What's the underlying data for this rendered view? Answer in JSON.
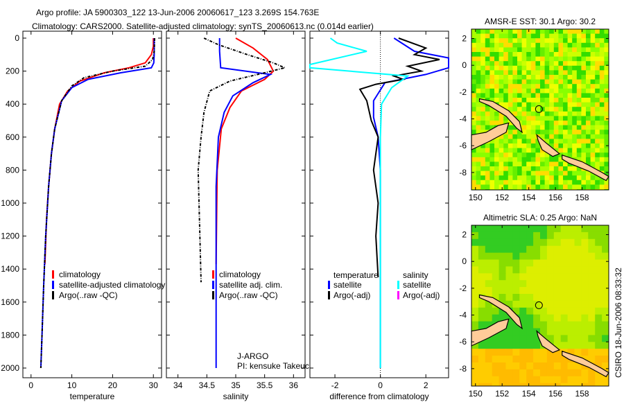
{
  "title_line1": "Argo profile: JA 5900303_122 13-Jun-2006 20060617_123 3.269S 154.763E",
  "title_line2": "Climatology: CARS2000. Satellite-adjusted climatology: synTS_20060613.nc (0.014d earlier)",
  "colors": {
    "climatology": "#ff0000",
    "satellite": "#0000ff",
    "argo": "#000000",
    "sal_satellite": "#00ffff",
    "sal_argo": "#ff00ff"
  },
  "chart_data": [
    {
      "type": "line",
      "name": "temperature",
      "xlabel": "temperature",
      "ylabel": "",
      "xlim": [
        -2,
        32
      ],
      "ylim": [
        2050,
        0
      ],
      "xticks": [
        "0",
        "10",
        "20",
        "30"
      ],
      "xtickvals": [
        0,
        10,
        20,
        30
      ],
      "yticks": [
        "0",
        "200",
        "400",
        "600",
        "800",
        "1000",
        "1200",
        "1400",
        "1600",
        "1800",
        "2000"
      ],
      "legend": [
        "climatology",
        "satellite-adjusted climatology",
        "Argo(..raw -QC)"
      ],
      "series": [
        {
          "name": "climatology",
          "color": "#ff0000",
          "x": [
            30,
            30,
            29.5,
            28,
            24,
            18,
            12,
            9,
            7,
            5.8,
            5,
            4.3,
            3.8,
            3.4
          ],
          "depth": [
            0,
            50,
            100,
            150,
            180,
            210,
            260,
            320,
            400,
            550,
            700,
            900,
            1100,
            1370
          ]
        },
        {
          "name": "satellite",
          "color": "#0000ff",
          "x": [
            30.2,
            30.2,
            30.1,
            29.5,
            22,
            14,
            10,
            7.5,
            5.8,
            5,
            4.3,
            3.6,
            3.1,
            2.7,
            2.4
          ],
          "depth": [
            0,
            100,
            150,
            180,
            210,
            250,
            300,
            380,
            550,
            700,
            900,
            1200,
            1500,
            1800,
            2000
          ]
        },
        {
          "name": "argo",
          "color": "#000000",
          "x": [
            30.3,
            30.2,
            29.8,
            28,
            20,
            13,
            10,
            7.5,
            5.8,
            5,
            4.3,
            3.6,
            3.1,
            2.7,
            2.4
          ],
          "depth": [
            0,
            80,
            130,
            170,
            200,
            240,
            290,
            380,
            550,
            700,
            900,
            1200,
            1500,
            1800,
            2000
          ]
        }
      ]
    },
    {
      "type": "line",
      "name": "salinity",
      "xlabel": "salinity",
      "xlim": [
        33.8,
        36.2
      ],
      "ylim": [
        2050,
        0
      ],
      "xticks": [
        "34",
        "34.5",
        "35",
        "35.5",
        "36"
      ],
      "xtickvals": [
        34,
        34.5,
        35,
        35.5,
        36
      ],
      "legend": [
        "climatology",
        "satellite adj. clim.",
        "Argo(..raw -QC)"
      ],
      "annotation": [
        "J-ARGO",
        "PI: kensuke Takeuchi"
      ],
      "series": [
        {
          "name": "climatology",
          "color": "#ff0000",
          "x": [
            35,
            35.3,
            35.55,
            35.65,
            35.5,
            35.1,
            34.9,
            34.75,
            34.68,
            34.66
          ],
          "depth": [
            0,
            60,
            130,
            200,
            250,
            320,
            420,
            550,
            800,
            1370
          ]
        },
        {
          "name": "satellite",
          "color": "#0000ff",
          "x": [
            34.72,
            34.72,
            34.74,
            35.6,
            35.3,
            34.95,
            34.8,
            34.7,
            34.66,
            34.66
          ],
          "depth": [
            0,
            80,
            180,
            220,
            270,
            350,
            450,
            600,
            900,
            2000
          ]
        },
        {
          "name": "argo",
          "color": "#000000",
          "x": [
            34.45,
            34.7,
            35.2,
            35.65,
            35.85,
            35.5,
            34.9,
            34.55,
            34.45,
            34.4,
            34.35,
            34.38,
            34.4
          ],
          "depth": [
            0,
            40,
            100,
            150,
            180,
            210,
            260,
            320,
            450,
            600,
            800,
            1200,
            1480
          ]
        }
      ]
    },
    {
      "type": "line",
      "name": "difference",
      "xlabel": "difference from climatology",
      "xlim": [
        -3.1,
        3
      ],
      "ylim": [
        2050,
        0
      ],
      "xticks": [
        "-2",
        "0",
        "2"
      ],
      "xtickvals": [
        -2,
        0,
        2
      ],
      "legend_titles": [
        "temperature",
        "salinity"
      ],
      "legend": [
        "satellite",
        "Argo(-adj)",
        "satellite",
        "Argo(-adj)"
      ],
      "series": [
        {
          "name": "temperature satellite",
          "color": "#0000ff",
          "x": [
            0.6,
            1.5,
            3,
            3,
            2,
            0.2,
            -0.3,
            -0.3,
            -0.1,
            0,
            0,
            0
          ],
          "depth": [
            0,
            80,
            120,
            180,
            220,
            270,
            380,
            480,
            600,
            800,
            1200,
            2000
          ]
        },
        {
          "name": "temperature argo",
          "color": "#000000",
          "x": [
            0.8,
            2,
            1.5,
            2.6,
            1.2,
            1.8,
            0.6,
            1,
            -0.2,
            -0.9,
            -0.6,
            -0.4,
            -0.1,
            -0.3,
            -0.1,
            -0.2,
            -0.1
          ],
          "depth": [
            0,
            60,
            100,
            130,
            170,
            200,
            230,
            250,
            280,
            310,
            380,
            500,
            600,
            800,
            1000,
            1200,
            1450
          ]
        },
        {
          "name": "salinity satellite",
          "color": "#00ffff",
          "x": [
            -2.2,
            -1.9,
            -0.6,
            -3.2,
            -3.2,
            1.2,
            0.5,
            0.05,
            0,
            0
          ],
          "depth": [
            0,
            30,
            80,
            160,
            180,
            230,
            300,
            400,
            600,
            2000
          ]
        },
        {
          "name": "salinity argo",
          "color": "#ff00ff",
          "x": [],
          "depth": []
        }
      ]
    },
    {
      "type": "heatmap",
      "name": "AMSR-E SST map",
      "title": "AMSR-E SST: 30.1 Argo: 30.2",
      "xlim": [
        149.7,
        160
      ],
      "ylim": [
        -9.3,
        2.7
      ],
      "xticks": [
        "150",
        "152",
        "154",
        "156",
        "158"
      ],
      "xtickvals": [
        150,
        152,
        154,
        156,
        158
      ],
      "yticks": [
        "2",
        "0",
        "-2",
        "-4",
        "-6",
        "-8"
      ],
      "ytickvals": [
        2,
        0,
        -2,
        -4,
        -6,
        -8
      ],
      "argo_position": [
        154.763,
        -3.269
      ]
    },
    {
      "type": "heatmap",
      "name": "Altimetric SLA map",
      "title": "Altimetric SLA: 0.25 Argo: NaN",
      "xlim": [
        149.7,
        160
      ],
      "ylim": [
        -9.3,
        2.7
      ],
      "xticks": [
        "150",
        "152",
        "154",
        "156",
        "158"
      ],
      "xtickvals": [
        150,
        152,
        154,
        156,
        158
      ],
      "yticks": [
        "2",
        "0",
        "-2",
        "-4",
        "-6",
        "-8"
      ],
      "ytickvals": [
        2,
        0,
        -2,
        -4,
        -6,
        -8
      ],
      "argo_position": [
        154.763,
        -3.269
      ]
    }
  ],
  "side_label": "CSIRO 18-Jun-2006 08:33:32"
}
